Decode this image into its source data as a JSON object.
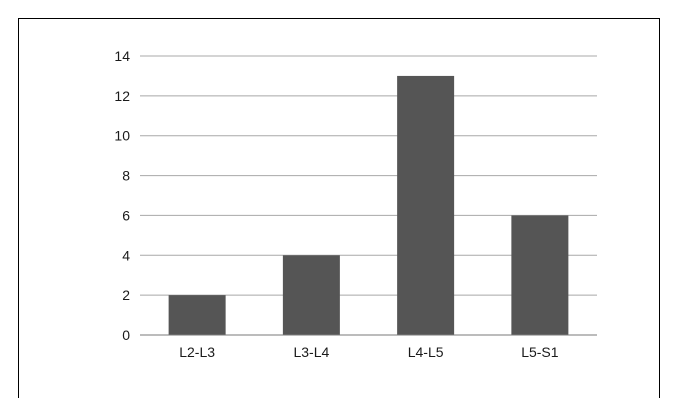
{
  "chart_data": {
    "type": "bar",
    "categories": [
      "L2-L3",
      "L3-L4",
      "L4-L5",
      "L5-S1"
    ],
    "values": [
      2,
      4,
      13,
      6
    ],
    "ylim": [
      0,
      14
    ],
    "yticks": [
      "0",
      "2",
      "4",
      "6",
      "8",
      "10",
      "12",
      "14"
    ],
    "grid": true,
    "legend": "none",
    "colors": {
      "bar": "#555555",
      "grid": "#a8a8a8",
      "axis": "#7a7a7a",
      "text": "#1a1a1a"
    }
  }
}
